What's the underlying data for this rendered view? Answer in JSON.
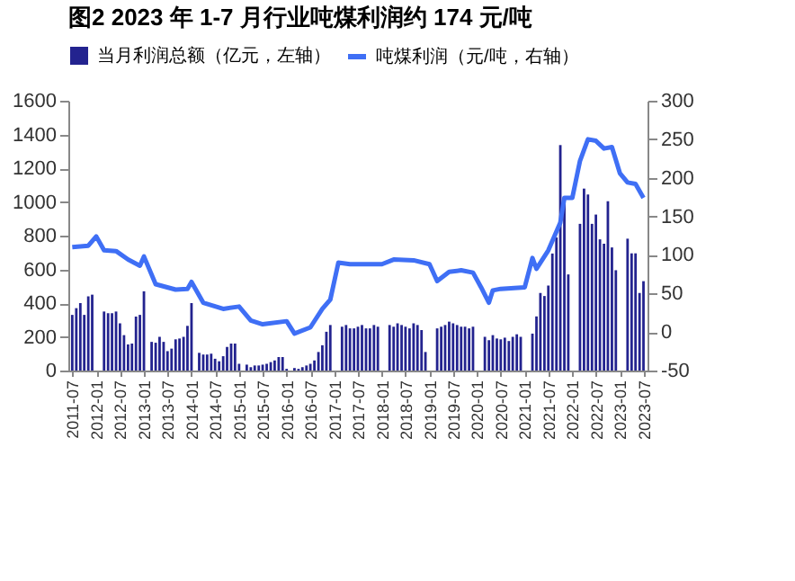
{
  "chart_data": {
    "type": "bar",
    "title": "图2   2023 年 1-7 月行业吨煤利润约 174 元/吨",
    "x": [
      "2011-07",
      "2011-08",
      "2011-09",
      "2011-10",
      "2011-11",
      "2011-12",
      "2012-01",
      "2012-02",
      "2012-03",
      "2012-04",
      "2012-05",
      "2012-06",
      "2012-07",
      "2012-08",
      "2012-09",
      "2012-10",
      "2012-11",
      "2012-12",
      "2013-01",
      "2013-02",
      "2013-03",
      "2013-04",
      "2013-05",
      "2013-06",
      "2013-07",
      "2013-08",
      "2013-09",
      "2013-10",
      "2013-11",
      "2013-12",
      "2014-01",
      "2014-02",
      "2014-03",
      "2014-04",
      "2014-05",
      "2014-06",
      "2014-07",
      "2014-08",
      "2014-09",
      "2014-10",
      "2014-11",
      "2014-12",
      "2015-01",
      "2015-02",
      "2015-03",
      "2015-04",
      "2015-05",
      "2015-06",
      "2015-07",
      "2015-08",
      "2015-09",
      "2015-10",
      "2015-11",
      "2015-12",
      "2016-01",
      "2016-02",
      "2016-03",
      "2016-04",
      "2016-05",
      "2016-06",
      "2016-07",
      "2016-08",
      "2016-09",
      "2016-10",
      "2016-11",
      "2016-12",
      "2017-01",
      "2017-02",
      "2017-03",
      "2017-04",
      "2017-05",
      "2017-06",
      "2017-07",
      "2017-08",
      "2017-09",
      "2017-10",
      "2017-11",
      "2017-12",
      "2018-01",
      "2018-02",
      "2018-03",
      "2018-04",
      "2018-05",
      "2018-06",
      "2018-07",
      "2018-08",
      "2018-09",
      "2018-10",
      "2018-11",
      "2018-12",
      "2019-01",
      "2019-02",
      "2019-03",
      "2019-04",
      "2019-05",
      "2019-06",
      "2019-07",
      "2019-08",
      "2019-09",
      "2019-10",
      "2019-11",
      "2019-12",
      "2020-01",
      "2020-02",
      "2020-03",
      "2020-04",
      "2020-05",
      "2020-06",
      "2020-07",
      "2020-08",
      "2020-09",
      "2020-10",
      "2020-11",
      "2020-12",
      "2021-01",
      "2021-02",
      "2021-03",
      "2021-04",
      "2021-05",
      "2021-06",
      "2021-07",
      "2021-08",
      "2021-09",
      "2021-10",
      "2021-11",
      "2021-12",
      "2022-01",
      "2022-02",
      "2022-03",
      "2022-04",
      "2022-05",
      "2022-06",
      "2022-07",
      "2022-08",
      "2022-09",
      "2022-10",
      "2022-11",
      "2022-12",
      "2023-01",
      "2023-02",
      "2023-03",
      "2023-04",
      "2023-05",
      "2023-06",
      "2023-07"
    ],
    "series": [
      {
        "name": "当月利润总额（亿元，左轴）",
        "color": "#23238f",
        "values": [
          330,
          370,
          400,
          330,
          440,
          450,
          null,
          null,
          350,
          340,
          340,
          350,
          280,
          210,
          155,
          160,
          320,
          330,
          470,
          null,
          170,
          165,
          200,
          170,
          115,
          130,
          185,
          190,
          200,
          265,
          400,
          null,
          105,
          95,
          95,
          100,
          70,
          55,
          85,
          140,
          160,
          160,
          40,
          null,
          35,
          20,
          30,
          30,
          35,
          40,
          50,
          60,
          80,
          80,
          10,
          null,
          15,
          10,
          20,
          30,
          40,
          60,
          110,
          150,
          230,
          270,
          null,
          null,
          260,
          270,
          250,
          250,
          260,
          270,
          250,
          250,
          270,
          260,
          null,
          null,
          270,
          260,
          280,
          270,
          260,
          250,
          280,
          270,
          240,
          110,
          null,
          null,
          250,
          260,
          270,
          290,
          280,
          270,
          260,
          260,
          250,
          260,
          null,
          null,
          200,
          180,
          210,
          190,
          185,
          195,
          175,
          200,
          215,
          200,
          null,
          null,
          219,
          321,
          460,
          442,
          504,
          694,
          789,
          1337,
          1030,
          570,
          null,
          null,
          870,
          1079,
          1044,
          870,
          925,
          778,
          752,
          1004,
          730,
          595,
          null,
          null,
          782,
          695,
          695,
          460,
          530
        ]
      },
      {
        "name": "吨煤利润（元/吨，右轴）",
        "type": "line",
        "axis": "y2",
        "color": "#3f6ff5",
        "x": [
          "2011-07",
          "2011-11",
          "2012-01",
          "2012-03",
          "2012-06",
          "2012-09",
          "2012-12",
          "2013-01",
          "2013-04",
          "2013-09",
          "2013-12",
          "2014-01",
          "2014-04",
          "2014-09",
          "2015-01",
          "2015-04",
          "2015-07",
          "2016-01",
          "2016-03",
          "2016-07",
          "2016-10",
          "2016-12",
          "2017-02",
          "2017-05",
          "2017-09",
          "2018-01",
          "2018-04",
          "2018-09",
          "2019-01",
          "2019-03",
          "2019-06",
          "2019-09",
          "2019-12",
          "2020-02",
          "2020-04",
          "2020-05",
          "2020-07",
          "2021-01",
          "2021-03",
          "2021-04",
          "2021-07",
          "2021-10",
          "2021-11",
          "2022-01",
          "2022-03",
          "2022-05",
          "2022-07",
          "2022-09",
          "2022-11",
          "2023-01",
          "2023-03",
          "2023-05",
          "2023-07"
        ],
        "values": [
          110,
          112,
          124,
          106,
          105,
          94,
          86,
          98,
          62,
          55,
          56,
          65,
          38,
          30,
          33,
          15,
          10,
          14,
          -2,
          6,
          30,
          42,
          90,
          88,
          88,
          88,
          94,
          93,
          88,
          66,
          78,
          80,
          77,
          58,
          38,
          54,
          56,
          58,
          96,
          82,
          106,
          142,
          174,
          174,
          222,
          250,
          248,
          238,
          240,
          206,
          194,
          192,
          174
        ]
      }
    ],
    "ylim": [
      0,
      1600
    ],
    "yticks": [
      0,
      200,
      400,
      600,
      800,
      1000,
      1200,
      1400,
      1600
    ],
    "y2lim": [
      -50,
      300
    ],
    "y2ticks": [
      -50,
      0,
      50,
      100,
      150,
      200,
      250,
      300
    ],
    "xlim": [
      "2011-06",
      "2023-08"
    ],
    "xticks": [
      "2011-07",
      "2012-01",
      "2012-07",
      "2013-01",
      "2013-07",
      "2014-01",
      "2014-07",
      "2015-01",
      "2015-07",
      "2016-01",
      "2016-07",
      "2017-01",
      "2017-07",
      "2018-01",
      "2018-07",
      "2019-01",
      "2019-07",
      "2020-01",
      "2020-07",
      "2021-01",
      "2021-07",
      "2022-01",
      "2022-07",
      "2023-01",
      "2023-07"
    ],
    "grid": false,
    "legend": "top",
    "marker": "none",
    "line_style": "solid"
  }
}
